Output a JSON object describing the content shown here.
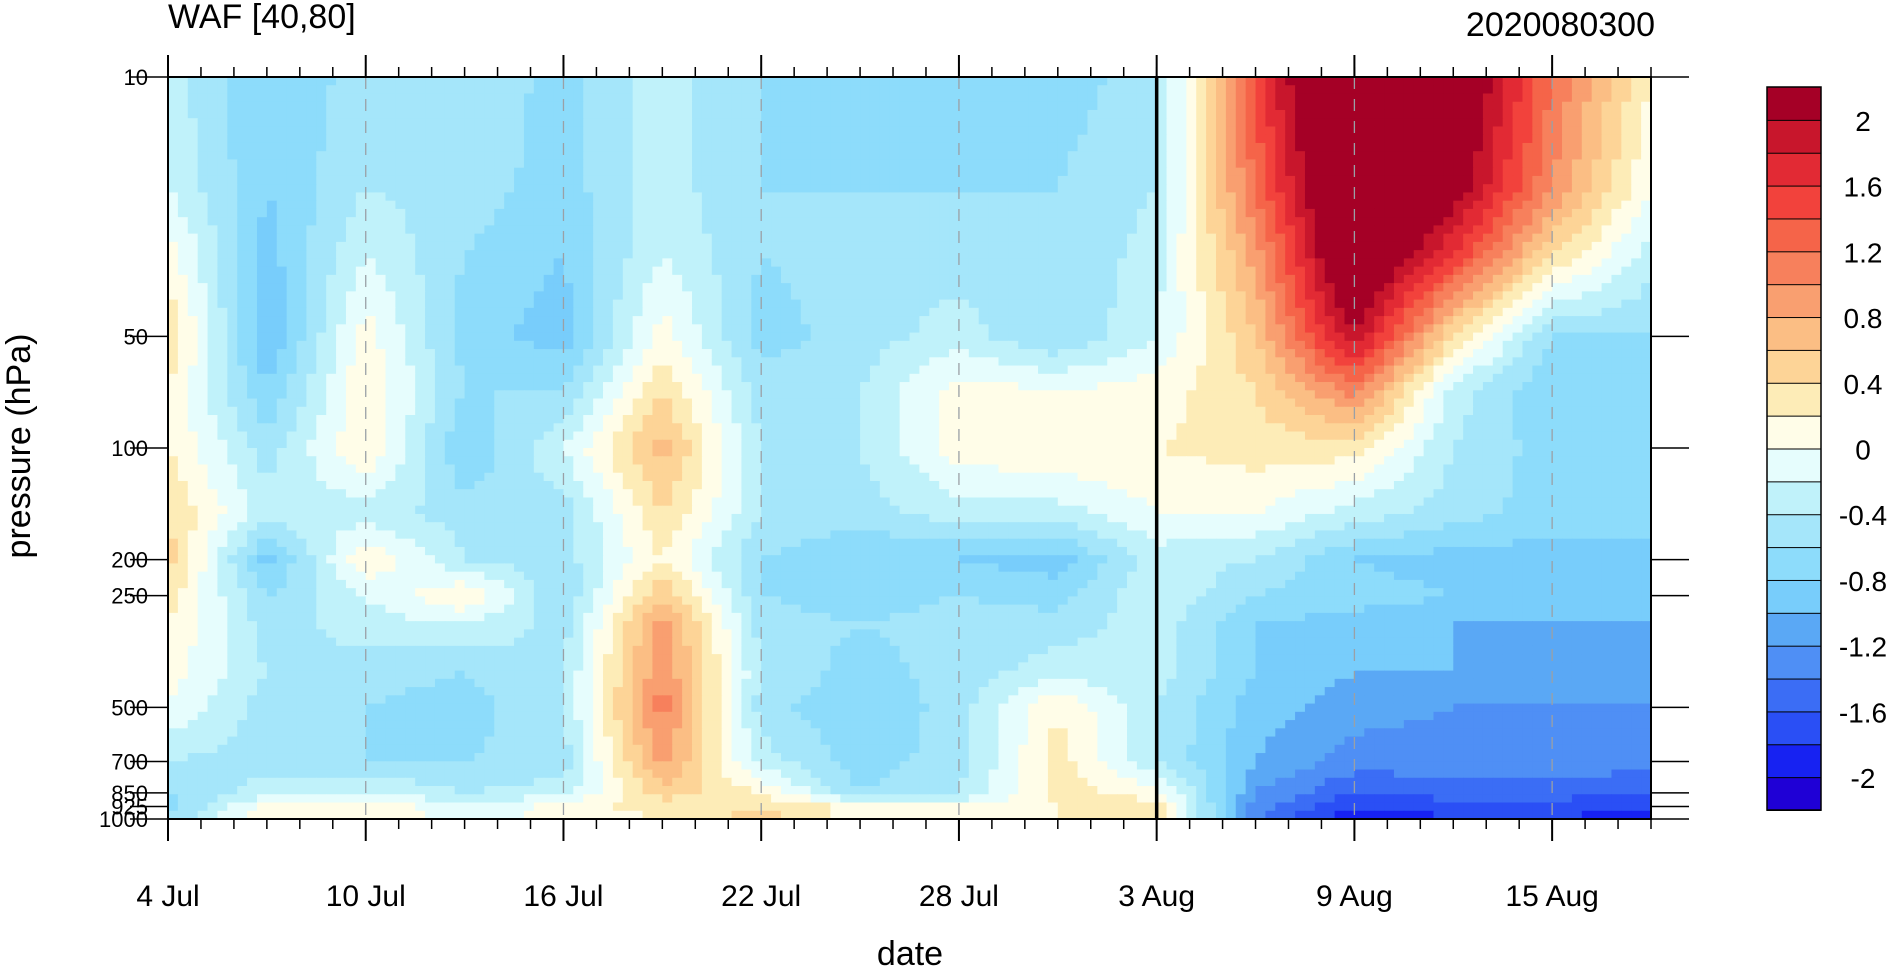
{
  "chart_data": {
    "type": "heatmap",
    "title": "WAF [40,80]",
    "subtitle": "2020080300",
    "xlabel": "date",
    "ylabel": "pressure (hPa)",
    "x_tick_labels": [
      "4 Jul",
      "10 Jul",
      "16 Jul",
      "22 Jul",
      "28 Jul",
      "3 Aug",
      "9 Aug",
      "15 Aug"
    ],
    "x_range": [
      "2020-07-04",
      "2020-08-18"
    ],
    "y_tick_labels": [
      "10",
      "50",
      "100",
      "200",
      "250",
      "500",
      "700",
      "850",
      "925",
      "1000"
    ],
    "y_levels": [
      10,
      20,
      30,
      50,
      70,
      100,
      150,
      200,
      250,
      300,
      400,
      500,
      700,
      850,
      925,
      1000
    ],
    "y_scale": "log",
    "y_reversed": true,
    "vertical_line_date": "2020-08-03",
    "colorbar": {
      "labels": [
        "2",
        "1.6",
        "1.2",
        "0.8",
        "0.4",
        "0",
        "-0.4",
        "-0.8",
        "-1.2",
        "-1.6",
        "-2"
      ],
      "levels": [
        -2.2,
        -2.0,
        -1.8,
        -1.6,
        -1.4,
        -1.2,
        -1.0,
        -0.8,
        -0.6,
        -0.4,
        -0.2,
        0.0,
        0.2,
        0.4,
        0.6,
        0.8,
        1.0,
        1.2,
        1.4,
        1.6,
        1.8,
        2.0,
        2.2
      ],
      "colors": [
        "#1f00d6",
        "#1722f2",
        "#2a4ff5",
        "#3b6df5",
        "#4f8ff5",
        "#5aa8f5",
        "#78cdfb",
        "#8ddcfb",
        "#a5e6fa",
        "#c0f2fa",
        "#e6fdfd",
        "#fffde8",
        "#fdecb7",
        "#fdd497",
        "#fbbe84",
        "#f99f70",
        "#f7805c",
        "#f56449",
        "#f2423c",
        "#e22a34",
        "#c8162c",
        "#a50026"
      ]
    },
    "time_series": {
      "dates": [
        "2020-07-04",
        "2020-07-07",
        "2020-07-10",
        "2020-07-13",
        "2020-07-16",
        "2020-07-19",
        "2020-07-22",
        "2020-07-25",
        "2020-07-28",
        "2020-07-31",
        "2020-08-03",
        "2020-08-06",
        "2020-08-09",
        "2020-08-12",
        "2020-08-15",
        "2020-08-18"
      ],
      "values": [
        [
          -0.3,
          -0.8,
          -0.5,
          -0.4,
          -0.7,
          -0.3,
          -0.6,
          -0.7,
          -0.6,
          -0.7,
          -0.5,
          1.5,
          3.0,
          2.5,
          1.2,
          0.2
        ],
        [
          -0.2,
          -0.8,
          -0.4,
          -0.5,
          -0.7,
          -0.3,
          -0.6,
          -0.6,
          -0.6,
          -0.6,
          -0.4,
          1.2,
          2.8,
          2.2,
          1.0,
          0.0
        ],
        [
          0.1,
          -0.9,
          -0.2,
          -0.6,
          -0.8,
          -0.2,
          -0.6,
          -0.5,
          -0.5,
          -0.6,
          -0.3,
          0.9,
          2.6,
          1.6,
          0.4,
          -0.3
        ],
        [
          0.4,
          -1.0,
          0.1,
          -0.7,
          -0.9,
          0.1,
          -0.7,
          -0.5,
          -0.3,
          -0.6,
          -0.2,
          0.6,
          2.0,
          0.4,
          -0.6,
          -0.6
        ],
        [
          0.2,
          -0.8,
          0.2,
          -0.6,
          -0.6,
          0.4,
          -0.5,
          -0.4,
          0.1,
          0.0,
          0.1,
          0.4,
          1.1,
          -0.3,
          -0.8,
          -0.7
        ],
        [
          0.2,
          -0.5,
          0.2,
          -0.8,
          -0.2,
          0.7,
          -0.4,
          -0.4,
          0.1,
          0.2,
          0.2,
          0.3,
          0.3,
          -0.4,
          -0.7,
          -0.7
        ],
        [
          0.4,
          -0.3,
          -0.3,
          -0.5,
          -0.5,
          0.4,
          -0.4,
          -0.5,
          -0.3,
          -0.3,
          0.0,
          0.0,
          -0.3,
          -0.5,
          -0.7,
          -0.8
        ],
        [
          0.5,
          -0.9,
          0.2,
          -0.4,
          -0.5,
          0.2,
          -0.6,
          -0.8,
          -0.8,
          -0.9,
          -0.3,
          -0.4,
          -0.8,
          -0.9,
          -0.9,
          -0.8
        ],
        [
          0.3,
          -0.6,
          -0.2,
          0.2,
          -0.6,
          0.6,
          -0.6,
          -0.7,
          -0.6,
          -0.7,
          -0.2,
          -0.6,
          -0.7,
          -0.8,
          -0.9,
          -0.9
        ],
        [
          0.2,
          -0.5,
          -0.3,
          -0.2,
          -0.5,
          0.9,
          -0.5,
          -0.6,
          -0.5,
          -0.5,
          -0.3,
          -0.8,
          -0.9,
          -1.0,
          -1.0,
          -1.0
        ],
        [
          0.1,
          -0.4,
          -0.5,
          -0.6,
          -0.4,
          1.0,
          -0.4,
          -0.7,
          -0.5,
          -0.3,
          -0.3,
          -0.8,
          -1.0,
          -1.0,
          -1.1,
          -1.1
        ],
        [
          0.0,
          -0.5,
          -0.6,
          -0.7,
          -0.4,
          1.1,
          -0.5,
          -0.8,
          -0.5,
          0.2,
          -0.4,
          -0.9,
          -1.1,
          -1.2,
          -1.2,
          -1.2
        ],
        [
          -0.4,
          -0.5,
          -0.6,
          -0.6,
          -0.5,
          0.9,
          -0.3,
          -0.7,
          -0.5,
          0.3,
          -0.4,
          -1.0,
          -1.3,
          -1.3,
          -1.3,
          -1.3
        ],
        [
          -0.6,
          -0.3,
          -0.2,
          -0.4,
          -0.3,
          0.5,
          0.2,
          -0.6,
          -0.4,
          0.3,
          0.1,
          -1.2,
          -1.6,
          -1.5,
          -1.5,
          -1.6
        ],
        [
          -0.7,
          0.1,
          0.2,
          -0.2,
          0.1,
          0.3,
          0.4,
          0.1,
          0.0,
          0.2,
          0.3,
          -1.3,
          -1.8,
          -1.7,
          -1.7,
          -1.8
        ],
        [
          -0.6,
          0.2,
          0.2,
          -0.1,
          0.1,
          0.2,
          0.5,
          0.1,
          0.1,
          0.2,
          0.4,
          -1.4,
          -2.0,
          -1.8,
          -1.8,
          -1.9
        ]
      ]
    }
  }
}
